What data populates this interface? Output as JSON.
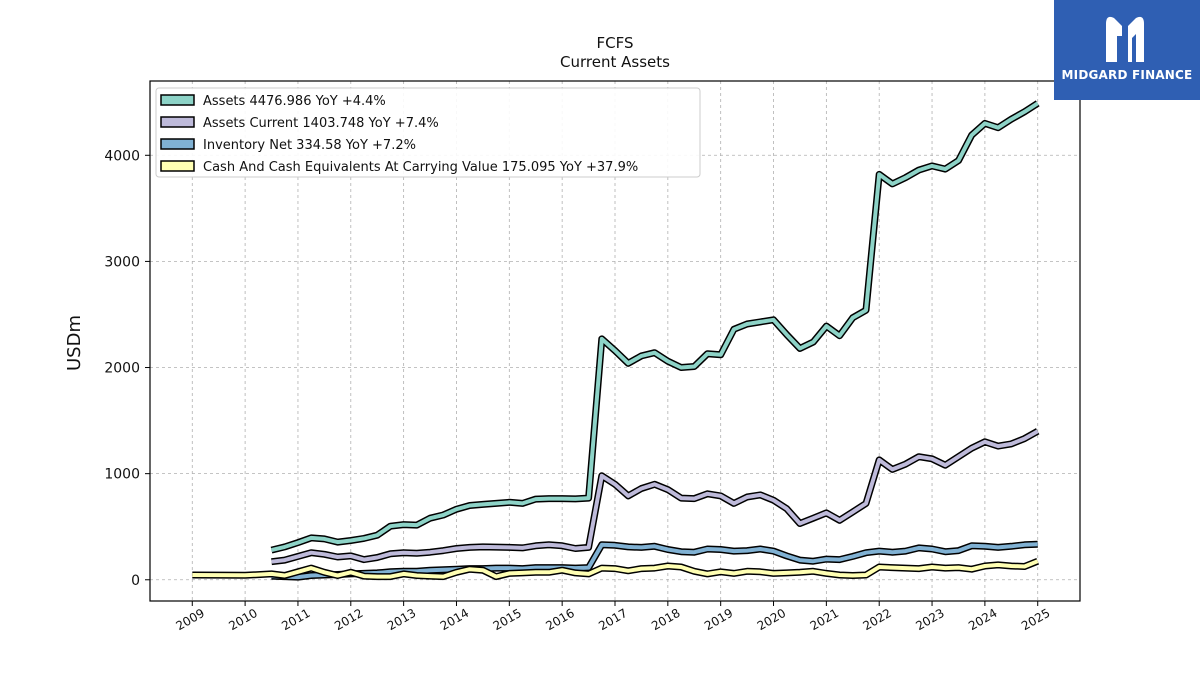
{
  "brand": {
    "name": "MIDGARD FINANCE",
    "logo_icon": "midgard-m-icon",
    "color": "#2f5fb3"
  },
  "chart_data": {
    "type": "line",
    "title": "FCFS",
    "subtitle": "Current  Assets",
    "xlabel": "",
    "ylabel": "USDm",
    "xlim": [
      2008.2,
      2025.8
    ],
    "ylim": [
      -200,
      4700
    ],
    "x_ticks": [
      "2009",
      "2010",
      "2011",
      "2012",
      "2013",
      "2014",
      "2015",
      "2016",
      "2017",
      "2018",
      "2019",
      "2020",
      "2021",
      "2022",
      "2023",
      "2024",
      "2025"
    ],
    "y_ticks": [
      0,
      1000,
      2000,
      3000,
      4000
    ],
    "grid": true,
    "legend_position": "top-left",
    "series": [
      {
        "name": "Assets  4476.986 YoY +4.4%",
        "color": "#8dd3c7",
        "points": [
          [
            2010.5,
            280
          ],
          [
            2010.75,
            310
          ],
          [
            2011.0,
            350
          ],
          [
            2011.25,
            395
          ],
          [
            2011.5,
            385
          ],
          [
            2011.75,
            355
          ],
          [
            2012.0,
            370
          ],
          [
            2012.25,
            390
          ],
          [
            2012.5,
            420
          ],
          [
            2012.75,
            505
          ],
          [
            2013.0,
            520
          ],
          [
            2013.25,
            515
          ],
          [
            2013.5,
            580
          ],
          [
            2013.75,
            610
          ],
          [
            2014.0,
            665
          ],
          [
            2014.25,
            700
          ],
          [
            2014.5,
            710
          ],
          [
            2014.75,
            720
          ],
          [
            2015.0,
            730
          ],
          [
            2015.25,
            720
          ],
          [
            2015.5,
            760
          ],
          [
            2015.75,
            765
          ],
          [
            2016.0,
            765
          ],
          [
            2016.25,
            762
          ],
          [
            2016.5,
            770
          ],
          [
            2016.75,
            2270
          ],
          [
            2017.0,
            2160
          ],
          [
            2017.25,
            2040
          ],
          [
            2017.5,
            2110
          ],
          [
            2017.75,
            2140
          ],
          [
            2018.0,
            2060
          ],
          [
            2018.25,
            2000
          ],
          [
            2018.5,
            2010
          ],
          [
            2018.75,
            2130
          ],
          [
            2019.0,
            2120
          ],
          [
            2019.25,
            2360
          ],
          [
            2019.5,
            2410
          ],
          [
            2019.75,
            2430
          ],
          [
            2020.0,
            2450
          ],
          [
            2020.25,
            2310
          ],
          [
            2020.5,
            2180
          ],
          [
            2020.75,
            2240
          ],
          [
            2021.0,
            2390
          ],
          [
            2021.25,
            2300
          ],
          [
            2021.5,
            2470
          ],
          [
            2021.75,
            2540
          ],
          [
            2022.0,
            3820
          ],
          [
            2022.25,
            3730
          ],
          [
            2022.5,
            3790
          ],
          [
            2022.75,
            3860
          ],
          [
            2023.0,
            3900
          ],
          [
            2023.25,
            3870
          ],
          [
            2023.5,
            3950
          ],
          [
            2023.75,
            4190
          ],
          [
            2024.0,
            4300
          ],
          [
            2024.25,
            4260
          ],
          [
            2024.5,
            4340
          ],
          [
            2024.75,
            4410
          ],
          [
            2025.0,
            4490
          ]
        ]
      },
      {
        "name": "Assets Current  1403.748 YoY +7.4%",
        "color": "#bebada",
        "points": [
          [
            2010.5,
            170
          ],
          [
            2010.75,
            185
          ],
          [
            2011.0,
            220
          ],
          [
            2011.25,
            255
          ],
          [
            2011.5,
            240
          ],
          [
            2011.75,
            215
          ],
          [
            2012.0,
            225
          ],
          [
            2012.25,
            190
          ],
          [
            2012.5,
            210
          ],
          [
            2012.75,
            245
          ],
          [
            2013.0,
            255
          ],
          [
            2013.25,
            250
          ],
          [
            2013.5,
            260
          ],
          [
            2013.75,
            275
          ],
          [
            2014.0,
            295
          ],
          [
            2014.25,
            305
          ],
          [
            2014.5,
            310
          ],
          [
            2014.75,
            308
          ],
          [
            2015.0,
            305
          ],
          [
            2015.25,
            300
          ],
          [
            2015.5,
            320
          ],
          [
            2015.75,
            330
          ],
          [
            2016.0,
            320
          ],
          [
            2016.25,
            295
          ],
          [
            2016.5,
            305
          ],
          [
            2016.75,
            980
          ],
          [
            2017.0,
            900
          ],
          [
            2017.25,
            790
          ],
          [
            2017.5,
            860
          ],
          [
            2017.75,
            900
          ],
          [
            2018.0,
            850
          ],
          [
            2018.25,
            770
          ],
          [
            2018.5,
            765
          ],
          [
            2018.75,
            810
          ],
          [
            2019.0,
            790
          ],
          [
            2019.25,
            720
          ],
          [
            2019.5,
            780
          ],
          [
            2019.75,
            800
          ],
          [
            2020.0,
            750
          ],
          [
            2020.25,
            670
          ],
          [
            2020.5,
            530
          ],
          [
            2020.75,
            580
          ],
          [
            2021.0,
            630
          ],
          [
            2021.25,
            560
          ],
          [
            2021.5,
            640
          ],
          [
            2021.75,
            720
          ],
          [
            2022.0,
            1130
          ],
          [
            2022.25,
            1040
          ],
          [
            2022.5,
            1090
          ],
          [
            2022.75,
            1160
          ],
          [
            2023.0,
            1140
          ],
          [
            2023.25,
            1080
          ],
          [
            2023.5,
            1160
          ],
          [
            2023.75,
            1240
          ],
          [
            2024.0,
            1300
          ],
          [
            2024.25,
            1260
          ],
          [
            2024.5,
            1280
          ],
          [
            2024.75,
            1330
          ],
          [
            2025.0,
            1400
          ]
        ]
      },
      {
        "name": "Inventory Net  334.58 YoY +7.2%",
        "color": "#80b1d3",
        "points": [
          [
            2010.5,
            35
          ],
          [
            2010.75,
            30
          ],
          [
            2011.0,
            25
          ],
          [
            2011.25,
            40
          ],
          [
            2011.5,
            45
          ],
          [
            2011.75,
            50
          ],
          [
            2012.0,
            55
          ],
          [
            2012.25,
            60
          ],
          [
            2012.5,
            65
          ],
          [
            2012.75,
            75
          ],
          [
            2013.0,
            80
          ],
          [
            2013.25,
            80
          ],
          [
            2013.5,
            90
          ],
          [
            2013.75,
            95
          ],
          [
            2014.0,
            100
          ],
          [
            2014.25,
            105
          ],
          [
            2014.5,
            105
          ],
          [
            2014.75,
            110
          ],
          [
            2015.0,
            110
          ],
          [
            2015.25,
            105
          ],
          [
            2015.5,
            115
          ],
          [
            2015.75,
            115
          ],
          [
            2016.0,
            115
          ],
          [
            2016.25,
            110
          ],
          [
            2016.5,
            115
          ],
          [
            2016.75,
            330
          ],
          [
            2017.0,
            325
          ],
          [
            2017.25,
            310
          ],
          [
            2017.5,
            305
          ],
          [
            2017.75,
            315
          ],
          [
            2018.0,
            285
          ],
          [
            2018.25,
            265
          ],
          [
            2018.5,
            260
          ],
          [
            2018.75,
            290
          ],
          [
            2019.0,
            285
          ],
          [
            2019.25,
            270
          ],
          [
            2019.5,
            275
          ],
          [
            2019.75,
            290
          ],
          [
            2020.0,
            270
          ],
          [
            2020.25,
            225
          ],
          [
            2020.5,
            185
          ],
          [
            2020.75,
            175
          ],
          [
            2021.0,
            195
          ],
          [
            2021.25,
            190
          ],
          [
            2021.5,
            220
          ],
          [
            2021.75,
            255
          ],
          [
            2022.0,
            270
          ],
          [
            2022.25,
            260
          ],
          [
            2022.5,
            270
          ],
          [
            2022.75,
            300
          ],
          [
            2023.0,
            290
          ],
          [
            2023.25,
            265
          ],
          [
            2023.5,
            275
          ],
          [
            2023.75,
            320
          ],
          [
            2024.0,
            315
          ],
          [
            2024.25,
            305
          ],
          [
            2024.5,
            315
          ],
          [
            2024.75,
            330
          ],
          [
            2025.0,
            335
          ]
        ]
      },
      {
        "name": "Cash And Cash Equivalents At Carrying Value  175.095 YoY +37.9%",
        "color": "#ffffb3",
        "points": [
          [
            2009.0,
            45
          ],
          [
            2009.5,
            44
          ],
          [
            2010.0,
            42
          ],
          [
            2010.5,
            55
          ],
          [
            2010.75,
            40
          ],
          [
            2011.0,
            75
          ],
          [
            2011.25,
            110
          ],
          [
            2011.5,
            70
          ],
          [
            2011.75,
            40
          ],
          [
            2012.0,
            70
          ],
          [
            2012.25,
            35
          ],
          [
            2012.5,
            30
          ],
          [
            2012.75,
            30
          ],
          [
            2013.0,
            55
          ],
          [
            2013.25,
            40
          ],
          [
            2013.5,
            35
          ],
          [
            2013.75,
            30
          ],
          [
            2014.0,
            70
          ],
          [
            2014.25,
            100
          ],
          [
            2014.5,
            90
          ],
          [
            2014.75,
            30
          ],
          [
            2015.0,
            60
          ],
          [
            2015.25,
            65
          ],
          [
            2015.5,
            70
          ],
          [
            2015.75,
            70
          ],
          [
            2016.0,
            90
          ],
          [
            2016.25,
            65
          ],
          [
            2016.5,
            55
          ],
          [
            2016.75,
            110
          ],
          [
            2017.0,
            105
          ],
          [
            2017.25,
            85
          ],
          [
            2017.5,
            105
          ],
          [
            2017.75,
            110
          ],
          [
            2018.0,
            130
          ],
          [
            2018.25,
            120
          ],
          [
            2018.5,
            80
          ],
          [
            2018.75,
            55
          ],
          [
            2019.0,
            75
          ],
          [
            2019.25,
            60
          ],
          [
            2019.5,
            80
          ],
          [
            2019.75,
            75
          ],
          [
            2020.0,
            60
          ],
          [
            2020.25,
            65
          ],
          [
            2020.5,
            70
          ],
          [
            2020.75,
            80
          ],
          [
            2021.0,
            60
          ],
          [
            2021.25,
            45
          ],
          [
            2021.5,
            40
          ],
          [
            2021.75,
            45
          ],
          [
            2022.0,
            120
          ],
          [
            2022.25,
            115
          ],
          [
            2022.5,
            110
          ],
          [
            2022.75,
            105
          ],
          [
            2023.0,
            120
          ],
          [
            2023.25,
            110
          ],
          [
            2023.5,
            115
          ],
          [
            2023.75,
            100
          ],
          [
            2024.0,
            130
          ],
          [
            2024.25,
            140
          ],
          [
            2024.5,
            130
          ],
          [
            2024.75,
            125
          ],
          [
            2025.0,
            175
          ]
        ]
      }
    ]
  }
}
